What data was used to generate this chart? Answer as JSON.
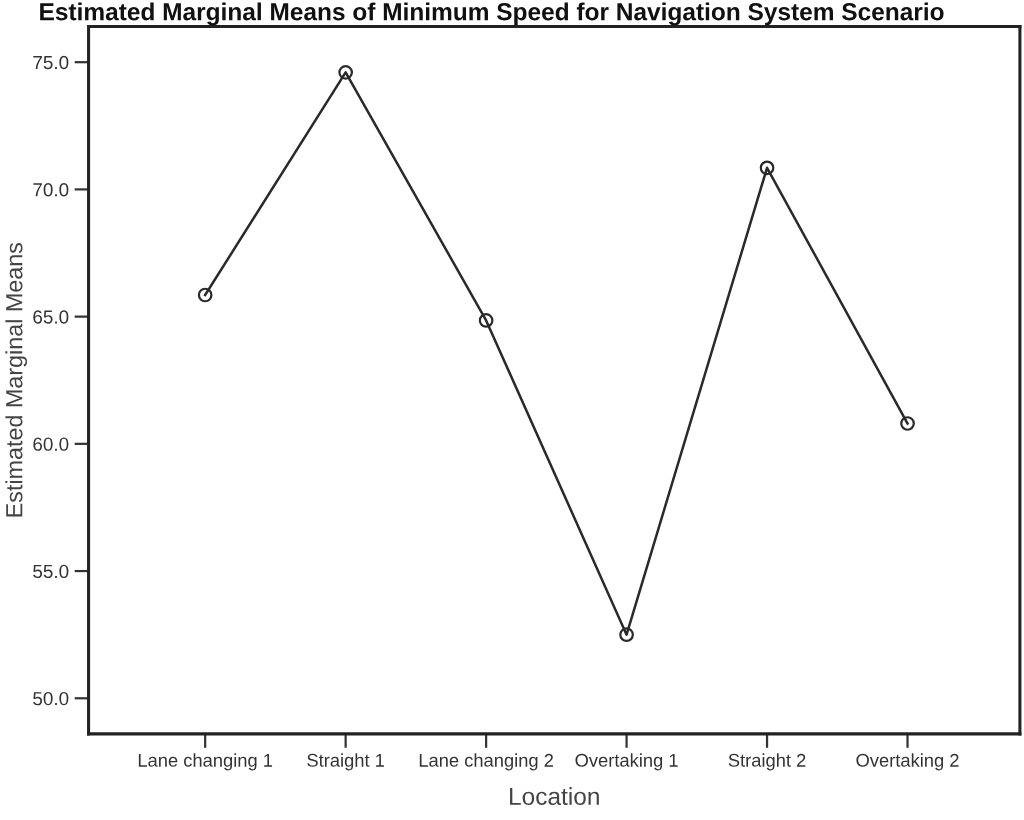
{
  "chart_data": {
    "type": "line",
    "title": "Estimated Marginal Means of Minimum Speed for Navigation System Scenario",
    "xlabel": "Location",
    "ylabel": "Estimated Marginal Means",
    "categories": [
      "Lane changing 1",
      "Straight 1",
      "Lane changing 2",
      "Overtaking 1",
      "Straight 2",
      "Overtaking 2"
    ],
    "series": [
      {
        "color": "#2a2a2a",
        "values": [
          65.85,
          74.6,
          64.85,
          52.5,
          70.85,
          60.8
        ]
      }
    ],
    "ylim": [
      48.6,
      76.4
    ],
    "yticks": [
      {
        "value": 50,
        "label": "50.0"
      },
      {
        "value": 55,
        "label": "55.0"
      },
      {
        "value": 60,
        "label": "60.0"
      },
      {
        "value": 65,
        "label": "65.0"
      },
      {
        "value": 70,
        "label": "70.0"
      },
      {
        "value": 75,
        "label": "75.0"
      }
    ],
    "grid": false,
    "marker": "circle",
    "line_style": "solid"
  }
}
